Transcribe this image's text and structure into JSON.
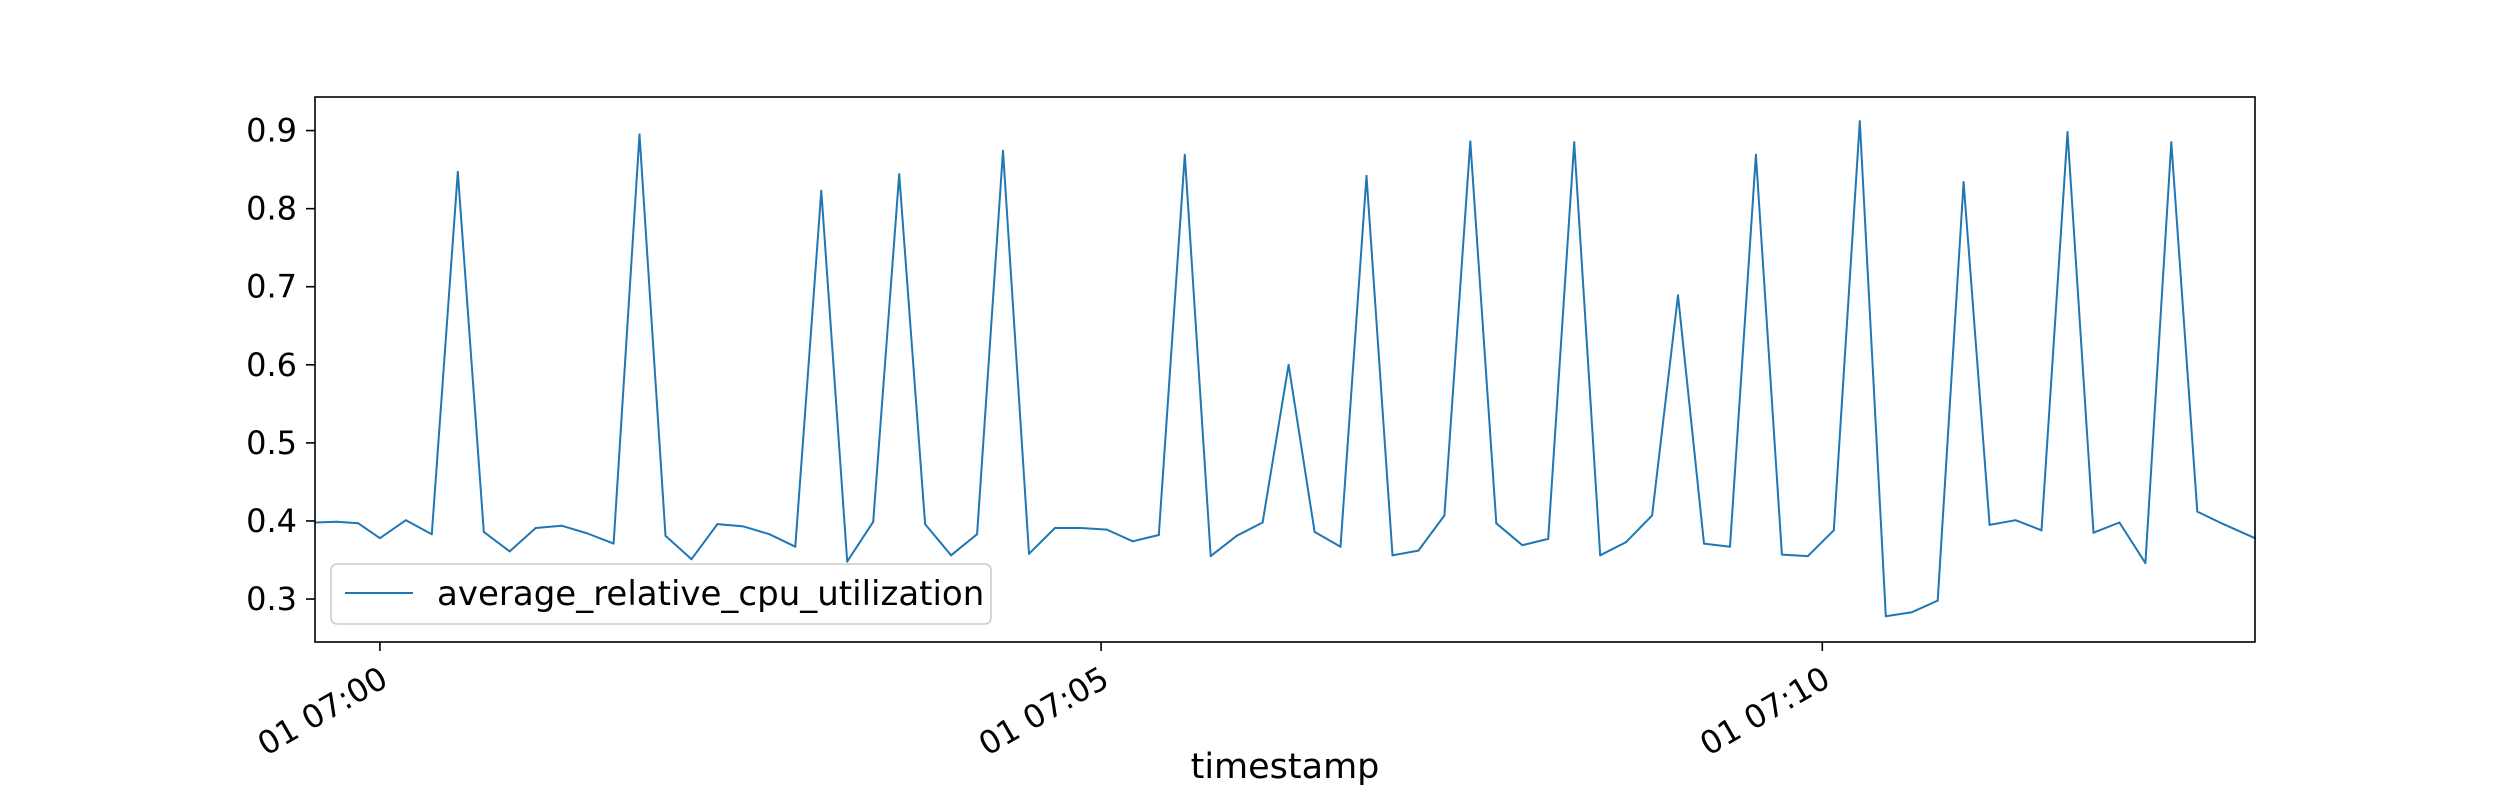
{
  "chart_data": {
    "type": "line",
    "title": "",
    "xlabel": "timestamp",
    "ylabel": "",
    "x_axis": {
      "scale": "time",
      "range_minutes": [
        -0.45,
        13.0
      ],
      "tick_minutes": [
        0,
        5,
        10
      ],
      "tick_labels": [
        "01 07:00",
        "01 07:05",
        "01 07:10"
      ]
    },
    "y_axis": {
      "range": [
        0.245,
        0.943
      ],
      "ticks": [
        0.3,
        0.4,
        0.5,
        0.6,
        0.7,
        0.8,
        0.9
      ],
      "tick_labels": [
        "0.3",
        "0.4",
        "0.5",
        "0.6",
        "0.7",
        "0.8",
        "0.9"
      ]
    },
    "grid": false,
    "legend": {
      "placement": "lower-left"
    },
    "series": [
      {
        "name": "average_relative_cpu_utilization",
        "color": "#1f77b4",
        "points": [
          [
            -0.45,
            0.398
          ],
          [
            -0.3,
            0.399
          ],
          [
            -0.15,
            0.397
          ],
          [
            0.0,
            0.378
          ],
          [
            0.18,
            0.401
          ],
          [
            0.36,
            0.383
          ],
          [
            0.54,
            0.847
          ],
          [
            0.72,
            0.386
          ],
          [
            0.9,
            0.361
          ],
          [
            1.08,
            0.391
          ],
          [
            1.26,
            0.394
          ],
          [
            1.44,
            0.384
          ],
          [
            1.62,
            0.371
          ],
          [
            1.8,
            0.895
          ],
          [
            1.98,
            0.381
          ],
          [
            2.16,
            0.351
          ],
          [
            2.34,
            0.396
          ],
          [
            2.52,
            0.393
          ],
          [
            2.7,
            0.383
          ],
          [
            2.88,
            0.367
          ],
          [
            3.06,
            0.823
          ],
          [
            3.24,
            0.348
          ],
          [
            3.42,
            0.399
          ],
          [
            3.6,
            0.844
          ],
          [
            3.78,
            0.396
          ],
          [
            3.96,
            0.356
          ],
          [
            4.14,
            0.383
          ],
          [
            4.32,
            0.874
          ],
          [
            4.5,
            0.358
          ],
          [
            4.68,
            0.391
          ],
          [
            4.86,
            0.391
          ],
          [
            5.04,
            0.389
          ],
          [
            5.22,
            0.374
          ],
          [
            5.4,
            0.382
          ],
          [
            5.58,
            0.869
          ],
          [
            5.76,
            0.355
          ],
          [
            5.94,
            0.381
          ],
          [
            6.12,
            0.398
          ],
          [
            6.3,
            0.6
          ],
          [
            6.48,
            0.386
          ],
          [
            6.66,
            0.367
          ],
          [
            6.84,
            0.842
          ],
          [
            7.02,
            0.356
          ],
          [
            7.2,
            0.362
          ],
          [
            7.38,
            0.407
          ],
          [
            7.56,
            0.886
          ],
          [
            7.74,
            0.397
          ],
          [
            7.92,
            0.369
          ],
          [
            8.1,
            0.377
          ],
          [
            8.28,
            0.885
          ],
          [
            8.46,
            0.356
          ],
          [
            8.64,
            0.373
          ],
          [
            8.82,
            0.407
          ],
          [
            9.0,
            0.689
          ],
          [
            9.18,
            0.371
          ],
          [
            9.36,
            0.367
          ],
          [
            9.54,
            0.869
          ],
          [
            9.72,
            0.357
          ],
          [
            9.9,
            0.355
          ],
          [
            10.08,
            0.388
          ],
          [
            10.26,
            0.912
          ],
          [
            10.44,
            0.278
          ],
          [
            10.62,
            0.283
          ],
          [
            10.8,
            0.298
          ],
          [
            10.98,
            0.834
          ],
          [
            11.16,
            0.395
          ],
          [
            11.34,
            0.401
          ],
          [
            11.52,
            0.388
          ],
          [
            11.7,
            0.898
          ],
          [
            11.88,
            0.385
          ],
          [
            12.06,
            0.398
          ],
          [
            12.24,
            0.346
          ],
          [
            12.42,
            0.885
          ],
          [
            12.6,
            0.412
          ],
          [
            12.78,
            0.396
          ],
          [
            13.0,
            0.378
          ]
        ]
      }
    ]
  }
}
